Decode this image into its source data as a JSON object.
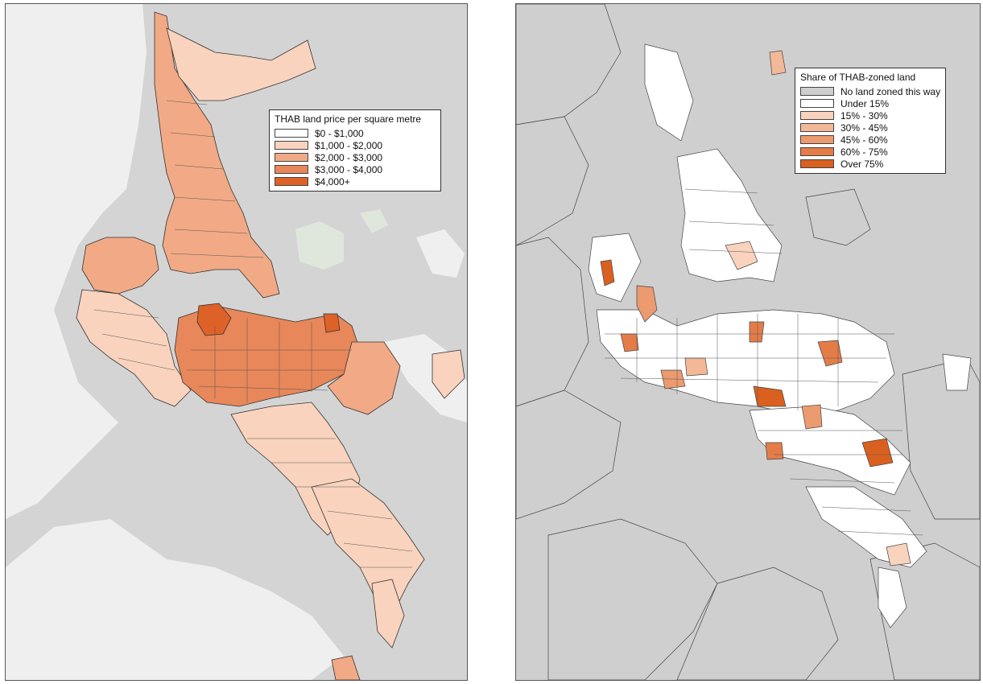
{
  "maps": [
    {
      "legend": {
        "title": "THAB land price per square metre",
        "items": [
          {
            "label": "$0 - $1,000",
            "color": "#ffffff"
          },
          {
            "label": "$1,000 - $2,000",
            "color": "#f9d3bd"
          },
          {
            "label": "$2,000 - $3,000",
            "color": "#f1aa85"
          },
          {
            "label": "$3,000 - $4,000",
            "color": "#e8875a"
          },
          {
            "label": "$4,000+",
            "color": "#de6228"
          }
        ]
      }
    },
    {
      "legend": {
        "title": "Share of THAB-zoned land",
        "items": [
          {
            "label": "No land zoned this way",
            "color": "#cfcfcf"
          },
          {
            "label": "Under 15%",
            "color": "#ffffff"
          },
          {
            "label": "15% - 30%",
            "color": "#f9d3bd"
          },
          {
            "label": "30% - 45%",
            "color": "#f3b897"
          },
          {
            "label": "45% - 60%",
            "color": "#ec9a6f"
          },
          {
            "label": "60% - 75%",
            "color": "#e47c48"
          },
          {
            "label": "Over 75%",
            "color": "#d9601f"
          }
        ]
      }
    }
  ],
  "colors": {
    "water_left": "#d4d4d4",
    "land_left": "#efefef",
    "water_right": "#cfcfcf",
    "land_right": "#ffffff",
    "border": "#333333"
  }
}
